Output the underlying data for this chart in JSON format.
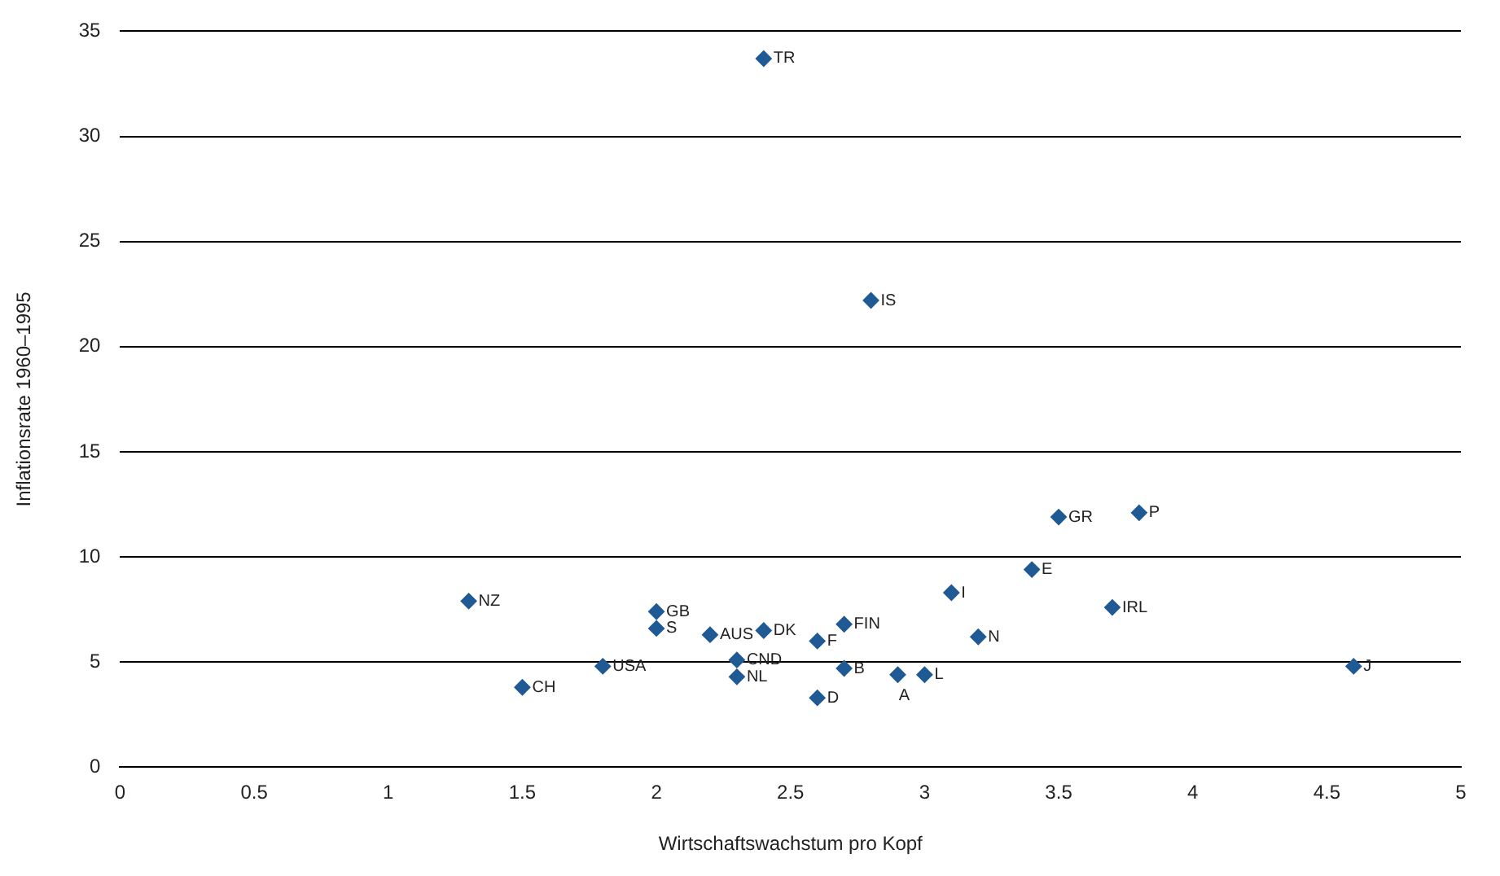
{
  "chart_data": {
    "type": "scatter",
    "xlabel": "Wirtschaftswachstum pro Kopf",
    "ylabel": "Inflationsrate 1960–1995",
    "xlim": [
      0,
      5
    ],
    "xticks": [
      0,
      {
        "value": 0.5,
        "label": "0.5"
      },
      1,
      {
        "value": 1.5,
        "label": "1.5"
      },
      2,
      {
        "value": 2.5,
        "label": "2.5"
      },
      3,
      {
        "value": 3.5,
        "label": "3.5"
      },
      4,
      {
        "value": 4.5,
        "label": "4.5"
      },
      5
    ],
    "ylim": [
      0,
      35
    ],
    "yticks": [
      0,
      5,
      10,
      15,
      20,
      25,
      30,
      35
    ],
    "grid": "y",
    "legend": false,
    "marker": "diamond",
    "series": [
      {
        "color": "#1f5a94",
        "x": [
          2.4,
          2.8,
          3.5,
          3.8,
          3.4,
          3.1,
          3.7,
          3.2,
          1.3,
          2.0,
          2.0,
          2.2,
          2.4,
          2.7,
          2.6,
          2.3,
          1.8,
          4.6,
          2.3,
          2.7,
          2.9,
          3.0,
          1.5,
          2.6
        ],
        "values": [
          33.7,
          22.2,
          11.9,
          12.1,
          9.4,
          8.3,
          7.6,
          6.2,
          7.9,
          7.4,
          6.6,
          6.3,
          6.5,
          6.8,
          6.0,
          5.1,
          4.8,
          4.8,
          4.3,
          4.7,
          4.4,
          4.4,
          3.8,
          3.3
        ]
      }
    ],
    "annotations": [
      {
        "text": "TR",
        "x": 2.4,
        "y": 33.7
      },
      {
        "text": "IS",
        "x": 2.8,
        "y": 22.2
      },
      {
        "text": "GR",
        "x": 3.5,
        "y": 11.9
      },
      {
        "text": "P",
        "x": 3.8,
        "y": 12.1
      },
      {
        "text": "E",
        "x": 3.4,
        "y": 9.4
      },
      {
        "text": "I",
        "x": 3.1,
        "y": 8.3
      },
      {
        "text": "IRL",
        "x": 3.7,
        "y": 7.6
      },
      {
        "text": "N",
        "x": 3.2,
        "y": 6.2
      },
      {
        "text": "NZ",
        "x": 1.3,
        "y": 7.9
      },
      {
        "text": "GB",
        "x": 2.0,
        "y": 7.4
      },
      {
        "text": "S",
        "x": 2.0,
        "y": 6.6
      },
      {
        "text": "AUS",
        "x": 2.2,
        "y": 6.3
      },
      {
        "text": "DK",
        "x": 2.4,
        "y": 6.5
      },
      {
        "text": "FIN",
        "x": 2.7,
        "y": 6.8
      },
      {
        "text": "F",
        "x": 2.6,
        "y": 6.0
      },
      {
        "text": "CND",
        "x": 2.3,
        "y": 5.1
      },
      {
        "text": "USA",
        "x": 1.8,
        "y": 4.8
      },
      {
        "text": "J",
        "x": 4.6,
        "y": 4.8
      },
      {
        "text": "NL",
        "x": 2.3,
        "y": 4.3
      },
      {
        "text": "B",
        "x": 2.7,
        "y": 4.7
      },
      {
        "text": "A",
        "x": 2.9,
        "y": 4.4
      },
      {
        "text": "L",
        "x": 3.0,
        "y": 4.4
      },
      {
        "text": "CH",
        "x": 1.5,
        "y": 3.8
      },
      {
        "text": "D",
        "x": 2.6,
        "y": 3.3
      }
    ]
  }
}
